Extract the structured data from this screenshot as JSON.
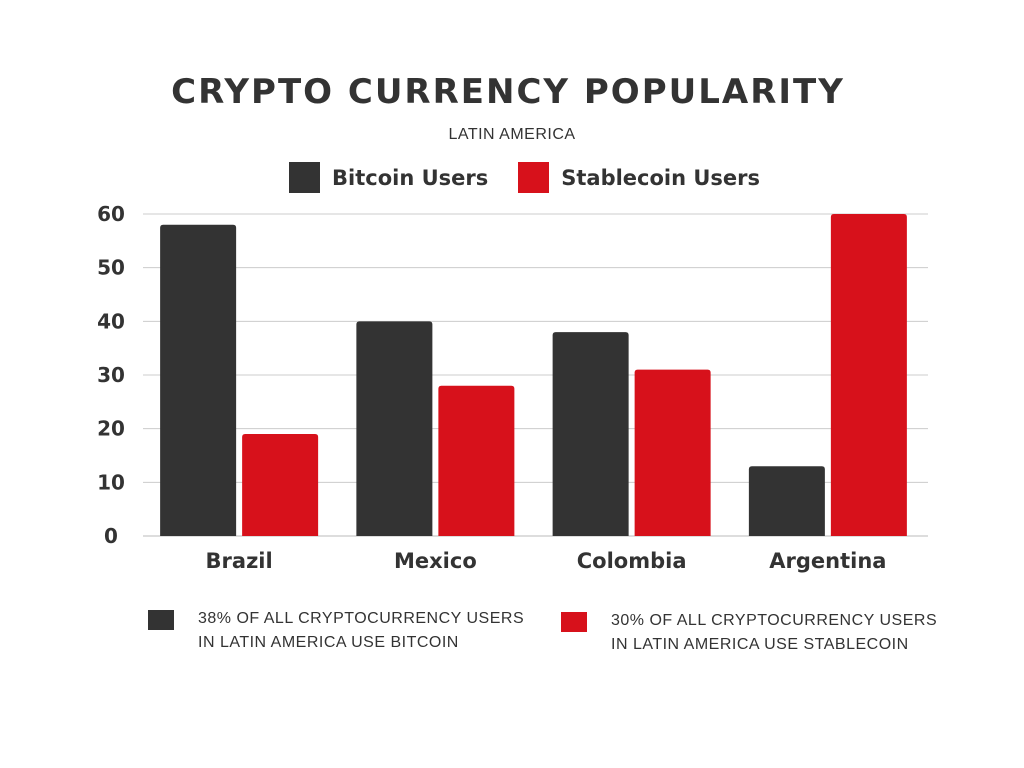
{
  "colors": {
    "bitcoin": "#333333",
    "stablecoin": "#d7111b",
    "grid": "#cccccc",
    "text": "#333333"
  },
  "chart_data": {
    "type": "bar",
    "title": "CRYPTO CURRENCY POPULARITY",
    "subtitle": "LATIN AMERICA",
    "categories": [
      "Brazil",
      "Mexico",
      "Colombia",
      "Argentina"
    ],
    "series": [
      {
        "name": "Bitcoin Users",
        "color": "#333333",
        "values": [
          58,
          40,
          38,
          13
        ]
      },
      {
        "name": "Stablecoin Users",
        "color": "#d7111b",
        "values": [
          19,
          28,
          31,
          60
        ]
      }
    ],
    "ylim": [
      0,
      60
    ],
    "yticks": [
      0,
      10,
      20,
      30,
      40,
      50,
      60
    ],
    "grid": true,
    "legend_position": "top"
  },
  "notes": [
    {
      "line1": "38% OF ALL CRYPTOCURRENCY USERS",
      "line2": "IN LATIN AMERICA USE BITCOIN",
      "color": "#333333"
    },
    {
      "line1": "30% OF ALL CRYPTOCURRENCY USERS",
      "line2": "IN LATIN AMERICA USE STABLECOIN",
      "color": "#d7111b"
    }
  ]
}
